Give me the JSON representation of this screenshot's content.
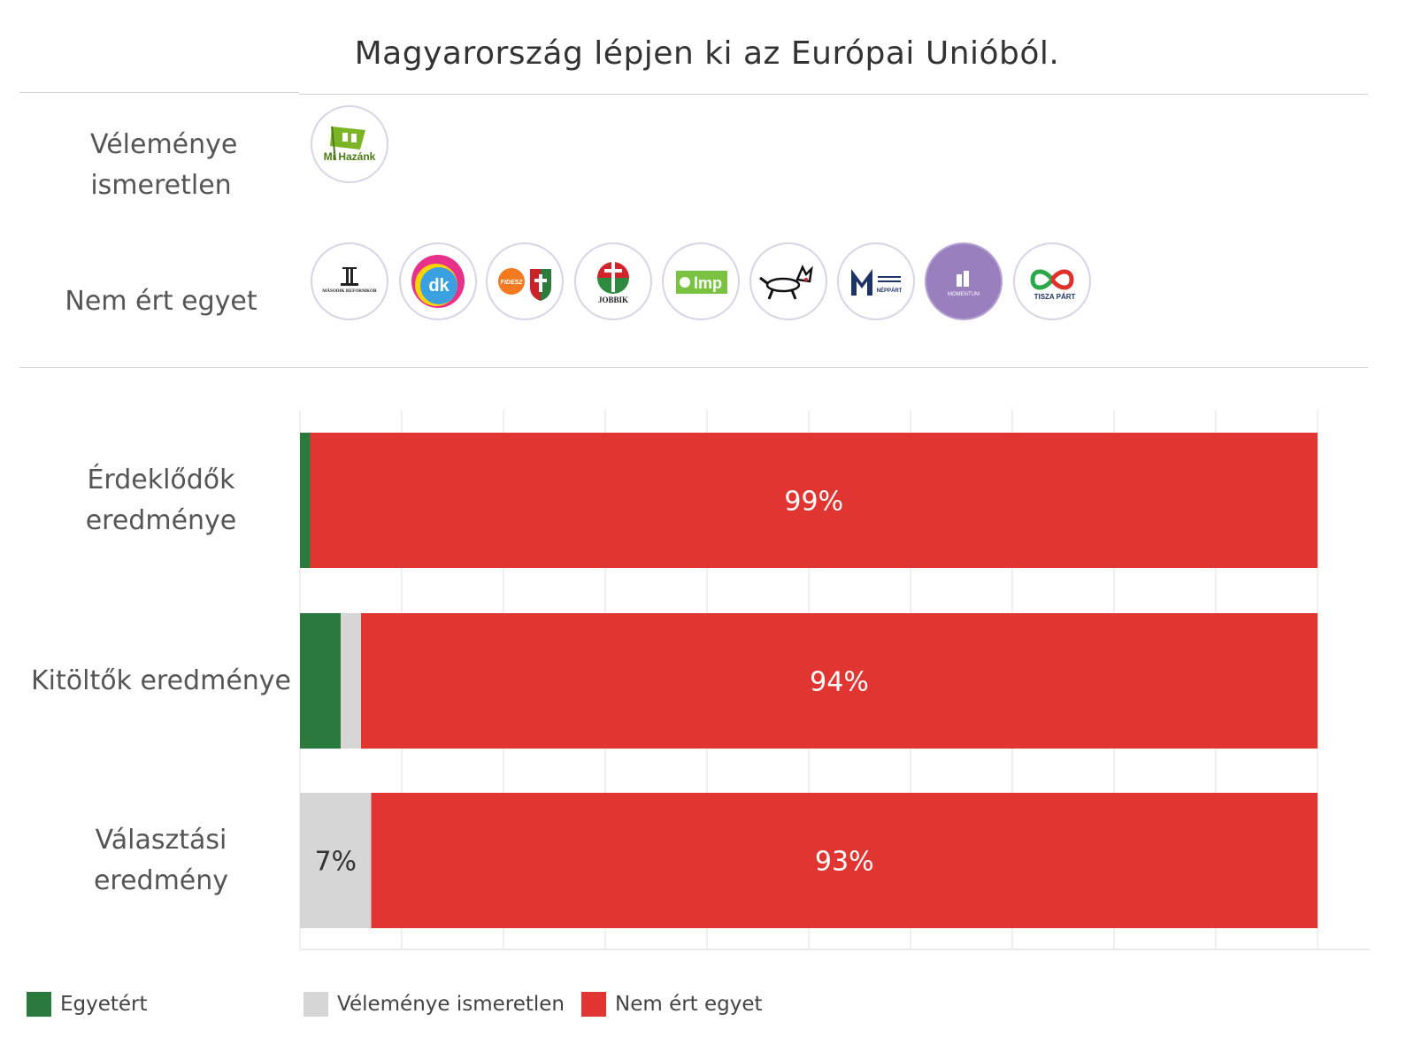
{
  "title": "Magyarország lépjen ki az Európai Unióból.",
  "colors": {
    "agree": "#2a7a3e",
    "unknown": "#d6d6d6",
    "disagree": "#e03530"
  },
  "positions": {
    "unknown": {
      "label": "Véleménye ismeretlen",
      "parties": [
        {
          "icon": "mi-hazank-logo",
          "text": "Mi Hazánk"
        }
      ]
    },
    "disagree": {
      "label": "Nem ért egyet",
      "parties": [
        {
          "icon": "masodik-reformkor-logo",
          "text": "MÁSODIK REFORMKOR"
        },
        {
          "icon": "dk-logo",
          "text": "dk"
        },
        {
          "icon": "fidesz-kdnp-logo",
          "text": "FIDESZ"
        },
        {
          "icon": "jobbik-logo",
          "text": "JOBBIK"
        },
        {
          "icon": "lmp-logo",
          "text": "lmp"
        },
        {
          "icon": "mkkp-dog-logo",
          "text": ""
        },
        {
          "icon": "mmn-logo",
          "text": "NÉPPÁRT"
        },
        {
          "icon": "momentum-logo",
          "text": "MOMENTUM"
        },
        {
          "icon": "tisza-logo",
          "text": "TISZA PÁRT"
        }
      ]
    }
  },
  "chart_data": {
    "type": "bar",
    "orientation": "horizontal",
    "stacked": true,
    "xlim": [
      0,
      100
    ],
    "grid": true,
    "legend_position": "bottom",
    "categories": [
      "Érdeklődők eredménye",
      "Kitöltők eredménye",
      "Választási eredmény"
    ],
    "series": [
      {
        "name": "Egyetért",
        "key": "agree",
        "values": [
          1,
          4,
          0
        ]
      },
      {
        "name": "Véleménye ismeretlen",
        "key": "unknown",
        "values": [
          0,
          2,
          7
        ]
      },
      {
        "name": "Nem ért egyet",
        "key": "disagree",
        "values": [
          99,
          94,
          93
        ]
      }
    ],
    "data_labels": [
      {
        "category": 0,
        "series": "disagree",
        "text": "99%"
      },
      {
        "category": 1,
        "series": "disagree",
        "text": "94%"
      },
      {
        "category": 2,
        "series": "unknown",
        "text": "7%"
      },
      {
        "category": 2,
        "series": "disagree",
        "text": "93%"
      }
    ]
  }
}
